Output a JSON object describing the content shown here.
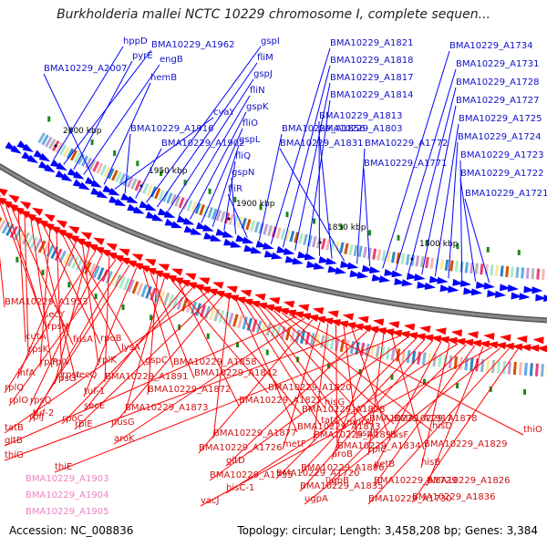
{
  "title": "Burkholderia mallei NCTC 10229 chromosome I, complete sequen...",
  "colors": {
    "forward": "#0000ff",
    "forward_label": "#1010c8",
    "reverse": "#ff0000",
    "reverse_label": "#d01010",
    "faded_label": "#f080c0",
    "backbone": "#8a8a8a",
    "feature": "#1a8a1a"
  },
  "scale_labels": [
    "2000 kbp",
    "1950 kbp",
    "1900 kbp",
    "1850 kbp",
    "1800 kbp"
  ],
  "forward_labels": [
    "hppD",
    "BMA10229_A1962",
    "pyrE",
    "engB",
    "BMA10229_A2007",
    "hemB",
    "cyaY",
    "BMA10229_A1916",
    "BMA10229_A1902",
    "gspI",
    "fliM",
    "gspJ",
    "fliN",
    "gspK",
    "fliO",
    "gspL",
    "fliQ",
    "gspN",
    "fliR",
    "BMA10229_A1856",
    "BMA10229_A1821",
    "BMA10229_A1818",
    "BMA10229_A1817",
    "BMA10229_A1814",
    "BMA10229_A1813",
    "BMA10229_A1803",
    "BMA10229_A1831",
    "BMA10229_A1772",
    "BMA10229_A1771",
    "BMA10229_A1734",
    "BMA10229_A1731",
    "BMA10229_A1728",
    "BMA10229_A1727",
    "BMA10229_A1725",
    "BMA10229_A1724",
    "BMA10229_A1723",
    "BMA10229_A1722",
    "BMA10229_A1721"
  ],
  "reverse_labels": [
    "BMA10229_A1953",
    "secY",
    "rpsH",
    "fusA",
    "cutA",
    "rpsK",
    "rplV",
    "recQ",
    "rpoB",
    "rplP",
    "rpsL",
    "lysA",
    "gspC",
    "infA",
    "rplK",
    "rpsG",
    "rplQ",
    "rpsQ",
    "BMA10229_A1891",
    "rplO",
    "tuf-2",
    "rplJ",
    "tuf-1",
    "BMA10229_A1858",
    "BMA10229_A1842",
    "BMA10229_A1872",
    "BMA10229_A1873",
    "BMA10229_A1820",
    "BMA10229_A1827",
    "secE",
    "rpoC",
    "BMA10229_A1828",
    "tatB",
    "rplE",
    "nusG",
    "BMA10229_A1877",
    "BMA10229_A1833",
    "tatC",
    "hisG",
    "murA",
    "BMA10229_A1917",
    "BMA10229_A1878",
    "hisD",
    "thiO",
    "gltB",
    "aroK",
    "BMA10229_A1726",
    "metF",
    "BMA10229_A1893",
    "BMA10229_A1834",
    "sspB",
    "hisF",
    "thiG",
    "gltD",
    "aroB",
    "rplC",
    "BMA10229_A1829",
    "thiE",
    "BMA10229_A1755",
    "BMA10229_A1720",
    "BMA10229_A1896",
    "BMA10229_A1835",
    "petB",
    "hisB",
    "hisC-1",
    "ugpB",
    "BMA10229_A1729",
    "BMA10229_A1826",
    "vacJ",
    "ugpA",
    "BMA10229_A1730",
    "BMA10229_A1836",
    "BMA10229_A1781",
    "ugpE",
    "BMA10229_A1732"
  ],
  "faded_labels": [
    "BMA10229_A1903",
    "BMA10229_A1904",
    "BMA10229_A1905"
  ],
  "footer": {
    "accession_label": "Accession:",
    "accession": "NC_008836",
    "topology_label": "Topology:",
    "topology": "circular",
    "length_label": "Length:",
    "length": "3,458,208 bp",
    "genes_label": "Genes:",
    "genes": "3,384"
  }
}
